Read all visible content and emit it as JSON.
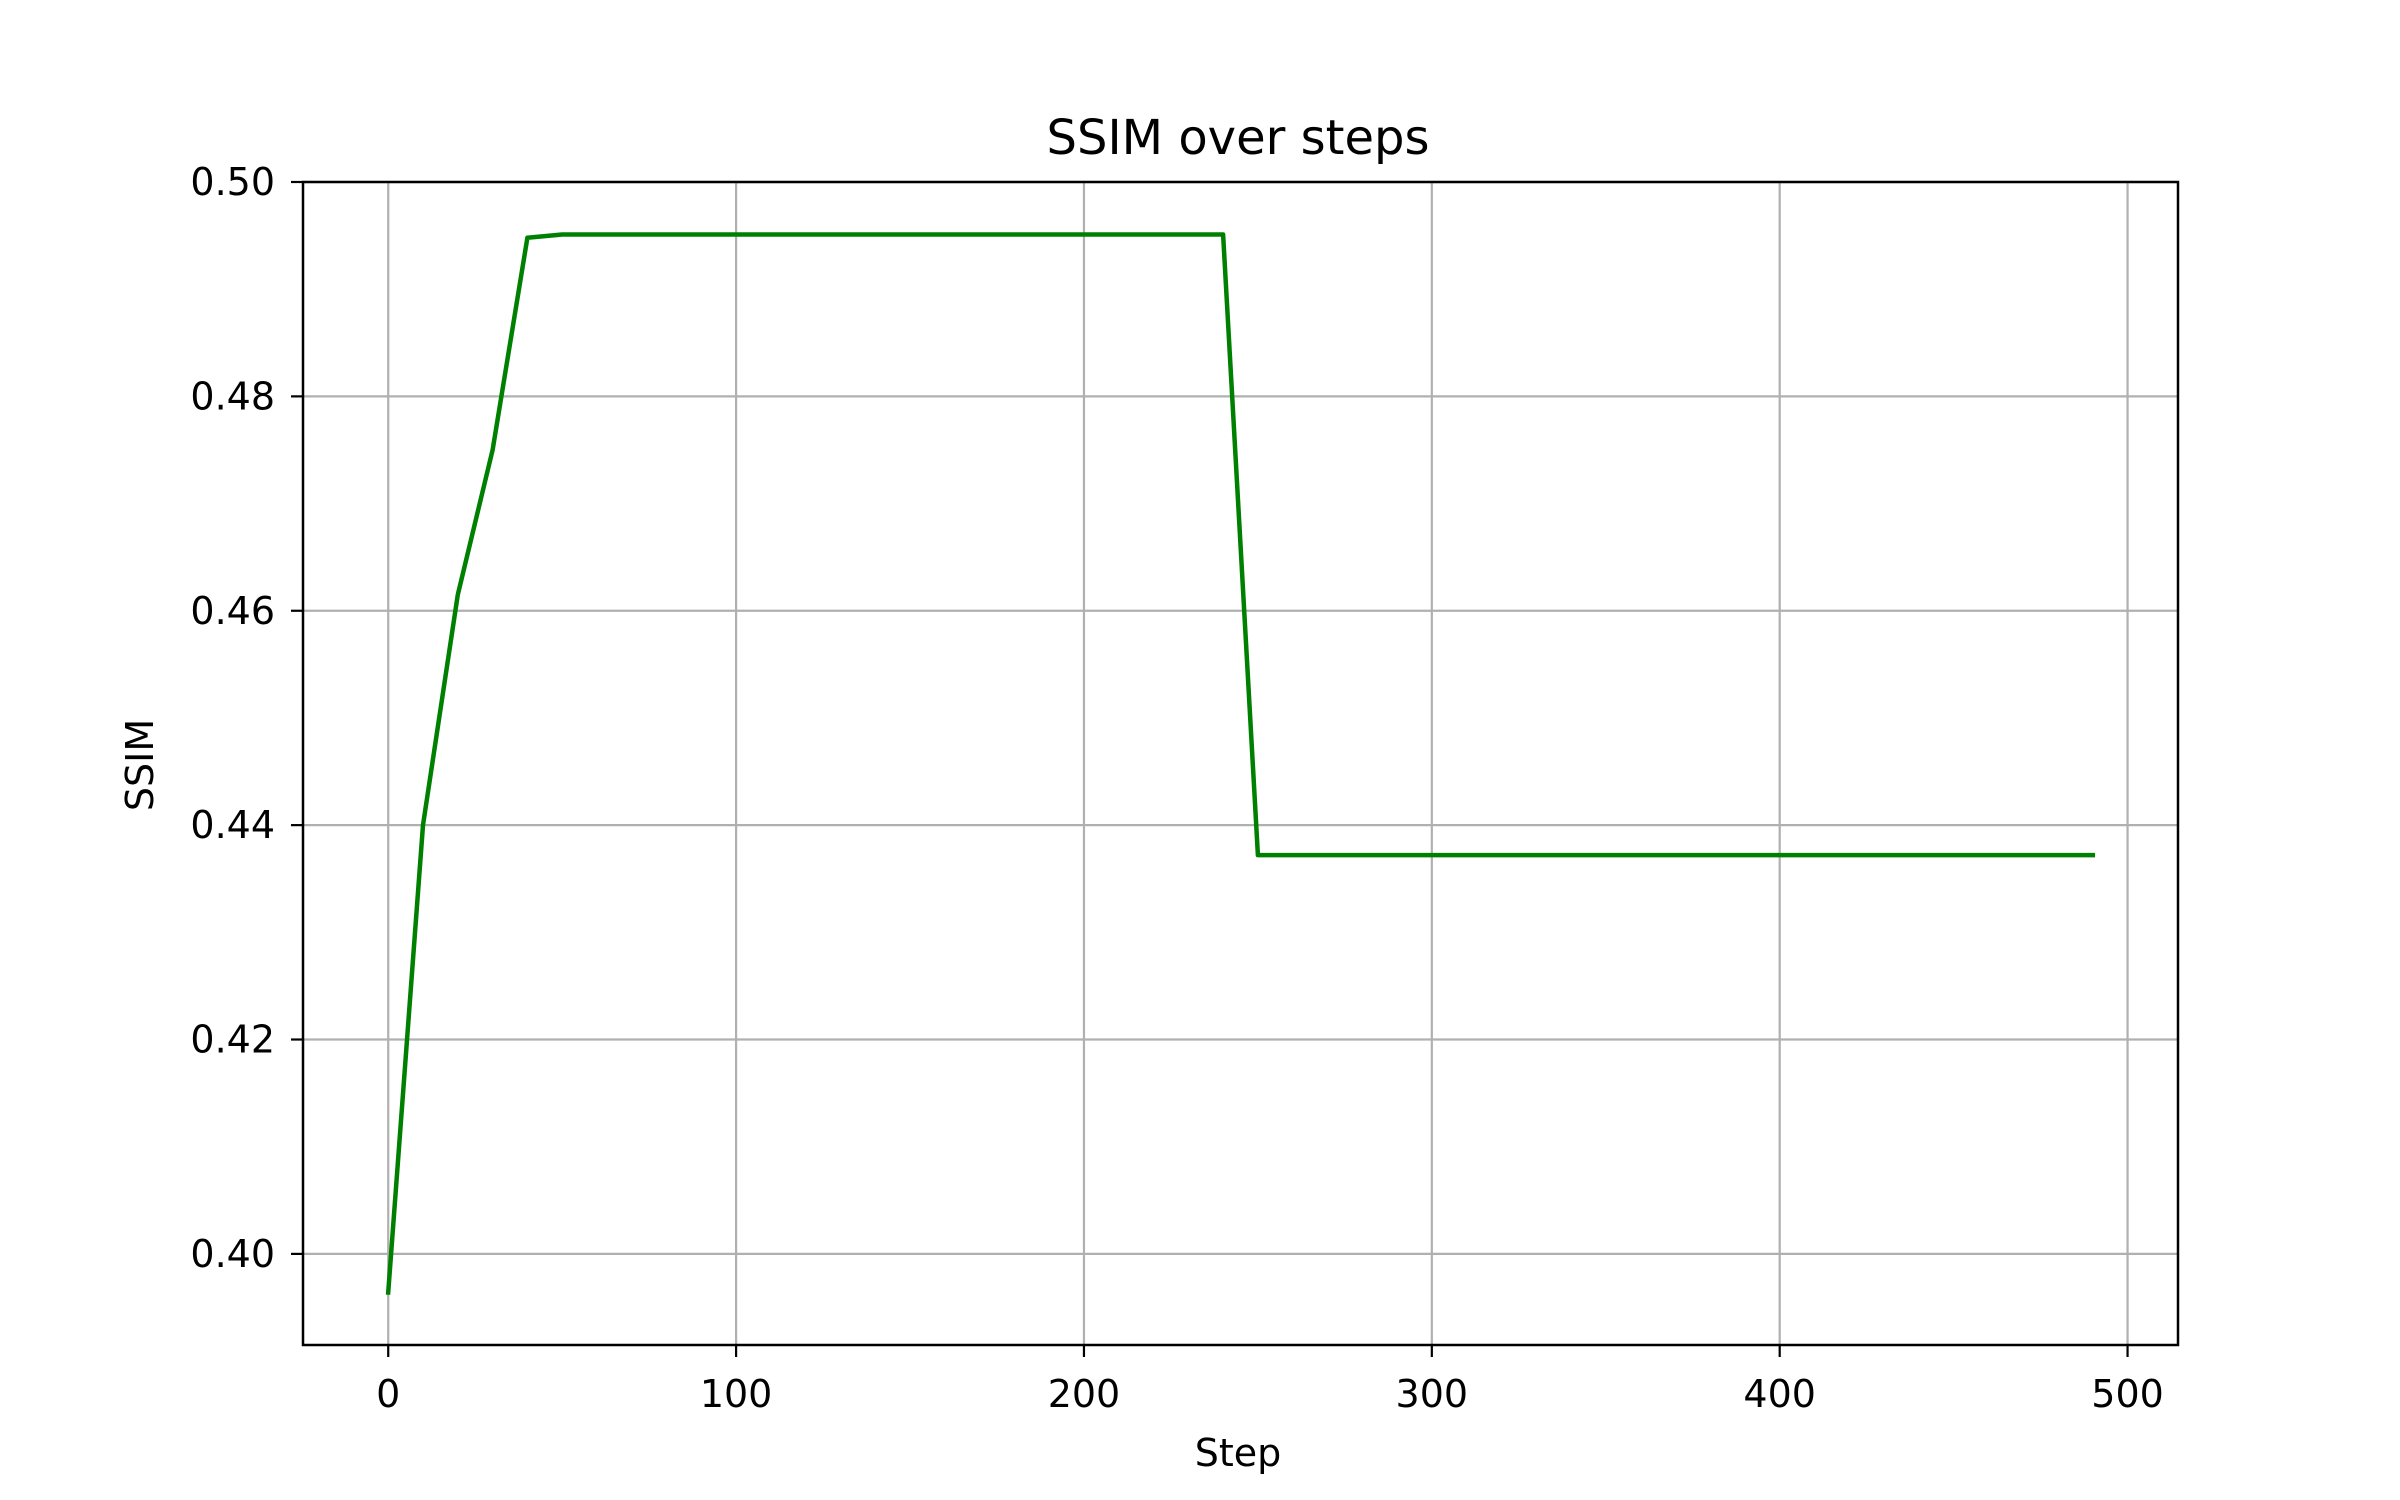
{
  "chart_data": {
    "type": "line",
    "title": "SSIM over steps",
    "xlabel": "Step",
    "ylabel": "SSIM",
    "xlim": [
      -24.5,
      514.5
    ],
    "ylim": [
      0.3915,
      0.5
    ],
    "xticks": [
      0,
      100,
      200,
      300,
      400,
      500
    ],
    "xtick_labels": [
      "0",
      "100",
      "200",
      "300",
      "400",
      "500"
    ],
    "yticks": [
      0.4,
      0.42,
      0.44,
      0.46,
      0.48,
      0.5
    ],
    "ytick_labels": [
      "0.40",
      "0.42",
      "0.44",
      "0.46",
      "0.48",
      "0.50"
    ],
    "grid": true,
    "series": [
      {
        "color": "#008000",
        "x": [
          0,
          10,
          20,
          30,
          40,
          50,
          60,
          70,
          80,
          90,
          100,
          110,
          120,
          130,
          140,
          150,
          160,
          170,
          180,
          190,
          200,
          210,
          220,
          230,
          240,
          250,
          260,
          270,
          280,
          290,
          300,
          310,
          320,
          330,
          340,
          350,
          360,
          370,
          380,
          390,
          400,
          410,
          420,
          430,
          440,
          450,
          460,
          470,
          480,
          490
        ],
        "values": [
          0.3964,
          0.44,
          0.4615,
          0.475,
          0.4948,
          0.4951,
          0.4951,
          0.4951,
          0.4951,
          0.4951,
          0.4951,
          0.4951,
          0.4951,
          0.4951,
          0.4951,
          0.4951,
          0.4951,
          0.4951,
          0.4951,
          0.4951,
          0.4951,
          0.4951,
          0.4951,
          0.4951,
          0.4951,
          0.4372,
          0.4372,
          0.4372,
          0.4372,
          0.4372,
          0.4372,
          0.4372,
          0.4372,
          0.4372,
          0.4372,
          0.4372,
          0.4372,
          0.4372,
          0.4372,
          0.4372,
          0.4372,
          0.4372,
          0.4372,
          0.4372,
          0.4372,
          0.4372,
          0.4372,
          0.4372,
          0.4372,
          0.4372
        ]
      }
    ]
  },
  "colors": {
    "grid": "#b0b0b0",
    "axes": "#000000"
  }
}
